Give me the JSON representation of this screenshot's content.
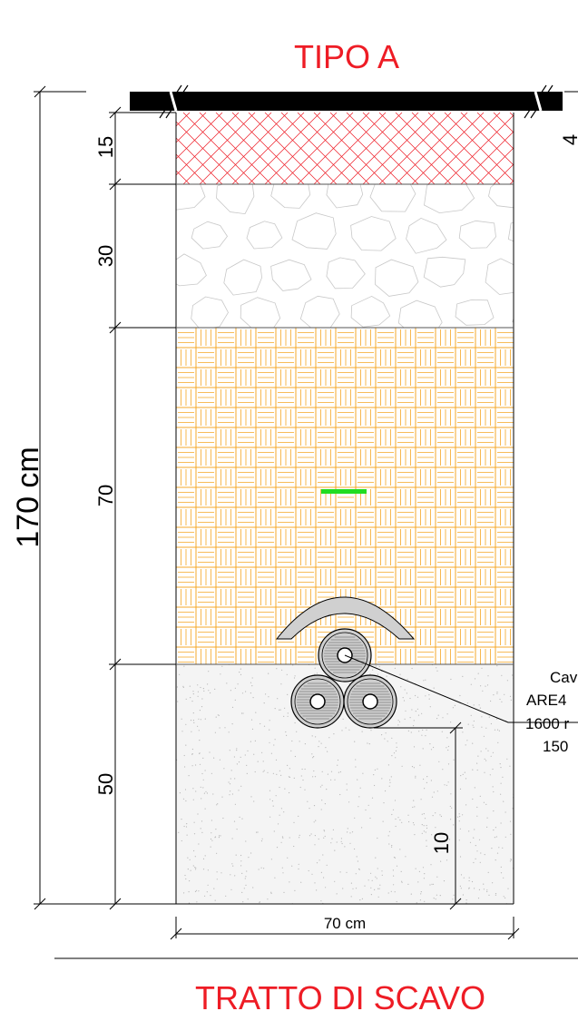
{
  "title": "TIPO A",
  "bottom_title": "TRATTO DI SCAVO",
  "colors": {
    "title": "#ee1c25",
    "asphalt_hatch": "#ee1c25",
    "gravel_outline": "#c8c8c8",
    "sand_hatch": "#f5a623",
    "warning_tape": "#22dd22",
    "dimension": "#000000"
  },
  "dimensions": {
    "total": "170 cm",
    "layers": [
      {
        "label": "15"
      },
      {
        "label": "30"
      },
      {
        "label": "70"
      },
      {
        "label": "50"
      }
    ],
    "right_partial": "4",
    "cable_clearance": "10",
    "width": "70 cm"
  },
  "cable_callout": {
    "lines": [
      "Cav",
      "ARE4",
      "1600 r",
      "150"
    ]
  },
  "icons": {
    "protection_slab": "arch-slab-icon",
    "cable": "cable-triplet-icon",
    "tape": "warning-tape-icon"
  }
}
